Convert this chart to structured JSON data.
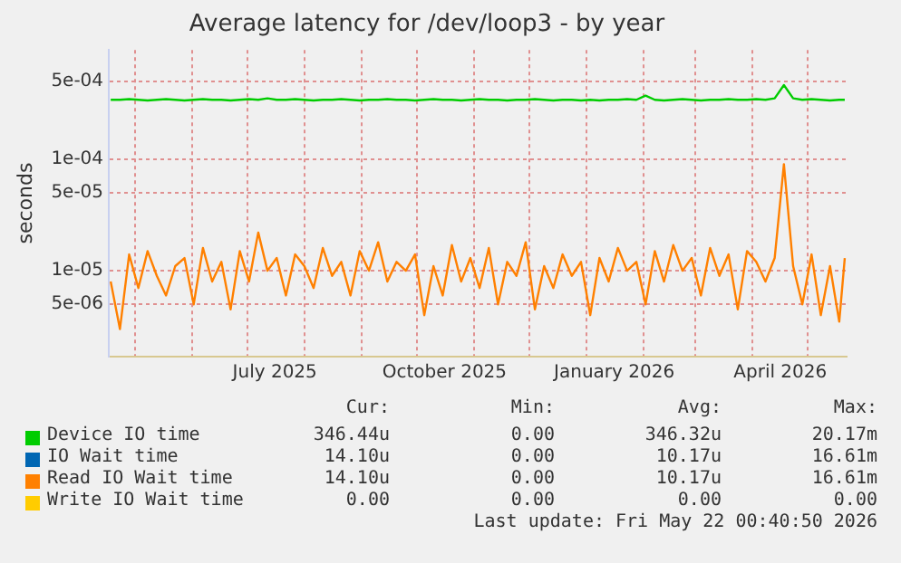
{
  "chart_data": {
    "type": "line",
    "title": "Average latency for /dev/loop3 - by year",
    "ylabel": "seconds",
    "log": "y",
    "grid": true,
    "legend": "bottom",
    "marker": "none",
    "line_style": "solid",
    "x": [
      "2025-04-18",
      "2025-04-23",
      "2025-04-28",
      "2025-05-03",
      "2025-05-08",
      "2025-05-13",
      "2025-05-18",
      "2025-05-23",
      "2025-05-28",
      "2025-06-02",
      "2025-06-07",
      "2025-06-12",
      "2025-06-17",
      "2025-06-22",
      "2025-06-27",
      "2025-07-02",
      "2025-07-07",
      "2025-07-12",
      "2025-07-17",
      "2025-07-22",
      "2025-07-27",
      "2025-08-01",
      "2025-08-06",
      "2025-08-11",
      "2025-08-16",
      "2025-08-21",
      "2025-08-26",
      "2025-08-31",
      "2025-09-05",
      "2025-09-10",
      "2025-09-15",
      "2025-09-20",
      "2025-09-25",
      "2025-09-30",
      "2025-10-05",
      "2025-10-10",
      "2025-10-15",
      "2025-10-20",
      "2025-10-25",
      "2025-10-30",
      "2025-11-04",
      "2025-11-09",
      "2025-11-14",
      "2025-11-19",
      "2025-11-24",
      "2025-11-29",
      "2025-12-04",
      "2025-12-09",
      "2025-12-14",
      "2025-12-19",
      "2025-12-24",
      "2025-12-29",
      "2026-01-03",
      "2026-01-08",
      "2026-01-13",
      "2026-01-18",
      "2026-01-23",
      "2026-01-28",
      "2026-02-02",
      "2026-02-07",
      "2026-02-12",
      "2026-02-17",
      "2026-02-22",
      "2026-02-27",
      "2026-03-04",
      "2026-03-09",
      "2026-03-14",
      "2026-03-19",
      "2026-03-24",
      "2026-03-29",
      "2026-04-03",
      "2026-04-08",
      "2026-04-13",
      "2026-04-18",
      "2026-04-23",
      "2026-04-28",
      "2026-05-03",
      "2026-05-08",
      "2026-05-13",
      "2026-05-18",
      "2026-05-21"
    ],
    "xlim": [
      "2025-04-17",
      "2026-05-22"
    ],
    "xticks": [
      {
        "value": "2025-05-01",
        "label": null
      },
      {
        "value": "2025-06-01",
        "label": null
      },
      {
        "value": "2025-07-01",
        "label": null
      },
      {
        "value": "2025-07-16",
        "label": "July 2025"
      },
      {
        "value": "2025-08-01",
        "label": null
      },
      {
        "value": "2025-09-01",
        "label": null
      },
      {
        "value": "2025-10-01",
        "label": null
      },
      {
        "value": "2025-10-16",
        "label": "October 2025"
      },
      {
        "value": "2025-11-01",
        "label": null
      },
      {
        "value": "2025-12-01",
        "label": null
      },
      {
        "value": "2026-01-01",
        "label": null
      },
      {
        "value": "2026-01-16",
        "label": "January 2026"
      },
      {
        "value": "2026-02-01",
        "label": null
      },
      {
        "value": "2026-03-01",
        "label": null
      },
      {
        "value": "2026-04-01",
        "label": null
      },
      {
        "value": "2026-04-16",
        "label": "April 2026"
      },
      {
        "value": "2026-05-01",
        "label": null
      }
    ],
    "ylim": [
      1.7e-06,
      0.00095
    ],
    "yticks": [
      {
        "value": 5e-06,
        "label": "5e-06"
      },
      {
        "value": 1e-05,
        "label": "1e-05"
      },
      {
        "value": 5e-05,
        "label": "5e-05"
      },
      {
        "value": 0.0001,
        "label": "1e-04"
      },
      {
        "value": 0.0005,
        "label": "5e-04"
      }
    ],
    "series": [
      {
        "name": "Device IO time",
        "color": "#00cc00",
        "values": [
          0.00034,
          0.00034,
          0.000345,
          0.00034,
          0.000335,
          0.00034,
          0.000345,
          0.00034,
          0.000335,
          0.00034,
          0.000345,
          0.00034,
          0.00034,
          0.000335,
          0.00034,
          0.000345,
          0.00034,
          0.00035,
          0.00034,
          0.00034,
          0.000345,
          0.00034,
          0.000335,
          0.00034,
          0.00034,
          0.000345,
          0.00034,
          0.000335,
          0.00034,
          0.00034,
          0.000345,
          0.00034,
          0.00034,
          0.000335,
          0.00034,
          0.000345,
          0.00034,
          0.00034,
          0.000335,
          0.00034,
          0.000345,
          0.00034,
          0.00034,
          0.000335,
          0.00034,
          0.00034,
          0.000345,
          0.00034,
          0.000335,
          0.00034,
          0.00034,
          0.000335,
          0.00034,
          0.000335,
          0.00034,
          0.00034,
          0.000345,
          0.00034,
          0.00037,
          0.00034,
          0.000335,
          0.00034,
          0.000345,
          0.00034,
          0.000335,
          0.00034,
          0.00034,
          0.000345,
          0.00034,
          0.00034,
          0.000345,
          0.00034,
          0.00035,
          0.00046,
          0.00035,
          0.00034,
          0.000345,
          0.00034,
          0.000335,
          0.00034,
          0.00034
        ]
      },
      {
        "name": "IO Wait time",
        "color": "#0066b3",
        "values": [
          null,
          null,
          null,
          null,
          null,
          null,
          null,
          null,
          null,
          null,
          null,
          null,
          null,
          null,
          null,
          null,
          null,
          null,
          null,
          null,
          null,
          null,
          null,
          null,
          null,
          null,
          null,
          null,
          null,
          null,
          null,
          null,
          null,
          null,
          null,
          null,
          null,
          null,
          null,
          null,
          null,
          null,
          null,
          null,
          null,
          null,
          null,
          null,
          null,
          null,
          null,
          null,
          null,
          null,
          null,
          null,
          null,
          null,
          null,
          null,
          null,
          null,
          null,
          null,
          null,
          null,
          null,
          null,
          null,
          null,
          null,
          null,
          null,
          null,
          null,
          null,
          null,
          null,
          null,
          null,
          null
        ]
      },
      {
        "name": "Read IO Wait time",
        "color": "#ff8000",
        "values": [
          8e-06,
          3e-06,
          1.4e-05,
          7e-06,
          1.5e-05,
          9e-06,
          6e-06,
          1.1e-05,
          1.3e-05,
          5e-06,
          1.6e-05,
          8e-06,
          1.2e-05,
          4.5e-06,
          1.5e-05,
          8e-06,
          2.2e-05,
          1e-05,
          1.3e-05,
          6e-06,
          1.4e-05,
          1.1e-05,
          7e-06,
          1.6e-05,
          9e-06,
          1.2e-05,
          6e-06,
          1.5e-05,
          1e-05,
          1.8e-05,
          8e-06,
          1.2e-05,
          1e-05,
          1.4e-05,
          4e-06,
          1.1e-05,
          6e-06,
          1.7e-05,
          8e-06,
          1.3e-05,
          7e-06,
          1.6e-05,
          5e-06,
          1.2e-05,
          9e-06,
          1.8e-05,
          4.5e-06,
          1.1e-05,
          7e-06,
          1.4e-05,
          9e-06,
          1.2e-05,
          4e-06,
          1.3e-05,
          8e-06,
          1.6e-05,
          1e-05,
          1.2e-05,
          5e-06,
          1.5e-05,
          8e-06,
          1.7e-05,
          1e-05,
          1.3e-05,
          6e-06,
          1.6e-05,
          9e-06,
          1.4e-05,
          4.5e-06,
          1.5e-05,
          1.2e-05,
          8e-06,
          1.3e-05,
          9e-05,
          1.1e-05,
          5e-06,
          1.4e-05,
          4e-06,
          1.1e-05,
          3.5e-06,
          1.3e-05
        ]
      },
      {
        "name": "Write IO Wait time",
        "color": "#ffcc00",
        "values": [
          null,
          null,
          null,
          null,
          null,
          null,
          null,
          null,
          null,
          null,
          null,
          null,
          null,
          null,
          null,
          null,
          null,
          null,
          null,
          null,
          null,
          null,
          null,
          null,
          null,
          null,
          null,
          null,
          null,
          null,
          null,
          null,
          null,
          null,
          null,
          null,
          null,
          null,
          null,
          null,
          null,
          null,
          null,
          null,
          null,
          null,
          null,
          null,
          null,
          null,
          null,
          null,
          null,
          null,
          null,
          null,
          null,
          null,
          null,
          null,
          null,
          null,
          null,
          null,
          null,
          null,
          null,
          null,
          null,
          null,
          null,
          null,
          null,
          null,
          null,
          null,
          null,
          null,
          null,
          null,
          null
        ]
      }
    ],
    "annotations": [
      "Cur:",
      "Min:",
      "Avg:",
      "Max:",
      "346.44u",
      "0.00",
      "346.32u",
      "20.17m",
      "14.10u",
      "0.00",
      "10.17u",
      "16.61m",
      "14.10u",
      "0.00",
      "10.17u",
      "16.61m",
      "0.00",
      "0.00",
      "0.00",
      "0.00",
      "Last update: Fri May 22 00:40:50 2026"
    ]
  }
}
